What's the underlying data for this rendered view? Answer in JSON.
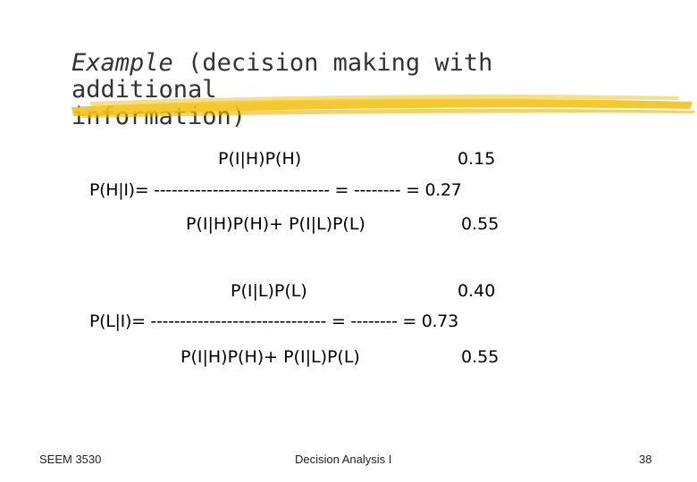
{
  "title": {
    "italic_part": "Example",
    "rest_line1": " (decision making with additional",
    "line2": "information)"
  },
  "formula1": {
    "numerator": "P(I|H)P(H)",
    "numerator_value": "0.15",
    "main_line": "P(H|I)= ------------------------------ = -------- = 0.27",
    "denominator": "P(I|H)P(H)+ P(I|L)P(L)",
    "denominator_value": "0.55"
  },
  "formula2": {
    "numerator": "P(I|L)P(L)",
    "numerator_value": "0.40",
    "main_line": "P(L|I)= ------------------------------ = -------- = 0.73",
    "denominator": "P(I|H)P(H)+ P(I|L)P(L)",
    "denominator_value": "0.55"
  },
  "footer": {
    "left": "SEEM 3530",
    "center": "Decision Analysis I",
    "page": "38"
  },
  "colors": {
    "underline_accent": "#f2c21b"
  }
}
